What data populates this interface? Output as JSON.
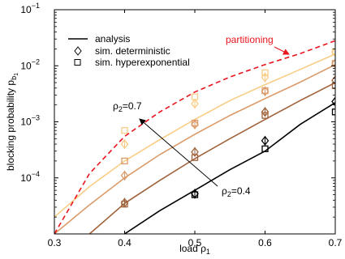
{
  "chart_data": {
    "type": "line",
    "xlabel": "load ρ",
    "xlabel_sub": "1",
    "ylabel": "blocking probability p",
    "ylabel_sub": "b",
    "ylabel_sub2": "1",
    "yscale": "log",
    "xlim": [
      0.3,
      0.7
    ],
    "ylim": [
      1e-05,
      0.1
    ],
    "xticks": [
      0.3,
      0.4,
      0.5,
      0.6,
      0.7
    ],
    "xtick_labels": [
      "0.3",
      "0.4",
      "0.5",
      "0.6",
      "0.7"
    ],
    "yticks": [
      0.0001,
      0.001,
      0.01,
      0.1
    ],
    "ytick_labels": [
      {
        "base": "10",
        "exp": "−4"
      },
      {
        "base": "10",
        "exp": "−3"
      },
      {
        "base": "10",
        "exp": "−2"
      },
      {
        "base": "10",
        "exp": "−1"
      }
    ],
    "legend": {
      "position": "top-left",
      "entries": [
        {
          "label": "analysis",
          "marker": "line"
        },
        {
          "label": "sim. deterministic",
          "marker": "diamond"
        },
        {
          "label": "sim. hyperexponential",
          "marker": "square"
        }
      ]
    },
    "annotations": {
      "partitioning": "partitioning",
      "rho_high": {
        "base": "ρ",
        "sub": "2",
        "value": "=0.7"
      },
      "rho_low": {
        "base": "ρ",
        "sub": "2",
        "value": "=0.4"
      }
    },
    "partitioning_curve": {
      "color": "#e8141e",
      "x": [
        0.3,
        0.35,
        0.4,
        0.45,
        0.5,
        0.55,
        0.6,
        0.65,
        0.7
      ],
      "y": [
        1e-05,
        0.00012,
        0.00055,
        0.0015,
        0.0034,
        0.0063,
        0.0105,
        0.0165,
        0.028
      ]
    },
    "series": [
      {
        "color": "#f9cd85",
        "analysis": {
          "x": [
            0.3,
            0.35,
            0.4,
            0.45,
            0.5,
            0.55,
            0.6,
            0.65,
            0.7
          ],
          "y": [
            2e-05,
            7e-05,
            0.0002,
            0.00048,
            0.0011,
            0.0024,
            0.0046,
            0.0086,
            0.0162
          ]
        },
        "deterministic": {
          "x": [
            0.4,
            0.5,
            0.6,
            0.7
          ],
          "y": [
            0.0004,
            0.0021,
            0.0062,
            0.0175
          ]
        },
        "hyperexponential": {
          "x": [
            0.4,
            0.5,
            0.6,
            0.7
          ],
          "y": [
            0.0007,
            0.0028,
            0.0075,
            0.0178
          ]
        }
      },
      {
        "color": "#db9a68",
        "analysis": {
          "x": [
            0.3,
            0.35,
            0.4,
            0.45,
            0.5,
            0.55,
            0.6,
            0.65,
            0.7
          ],
          "y": [
            1e-05,
            3.3e-05,
            0.0001,
            0.00026,
            0.0006,
            0.0013,
            0.0026,
            0.0051,
            0.0105
          ]
        },
        "deterministic": {
          "x": [
            0.4,
            0.5,
            0.6,
            0.7
          ],
          "y": [
            0.00011,
            0.0009,
            0.0035,
            0.011
          ]
        },
        "hyperexponential": {
          "x": [
            0.4,
            0.5,
            0.6,
            0.7
          ],
          "y": [
            0.0002,
            0.00095,
            0.0036,
            0.011
          ]
        }
      },
      {
        "color": "#a0623a",
        "analysis": {
          "x": [
            0.35,
            0.4,
            0.45,
            0.5,
            0.55,
            0.6,
            0.65,
            0.7
          ],
          "y": [
            1e-05,
            3.5e-05,
            9e-05,
            0.00022,
            0.0005,
            0.0011,
            0.0024,
            0.005
          ]
        },
        "deterministic": {
          "x": [
            0.4,
            0.5,
            0.6,
            0.7
          ],
          "y": [
            3.6e-05,
            0.00029,
            0.0015,
            0.0055
          ]
        },
        "hyperexponential": {
          "x": [
            0.4,
            0.5,
            0.6,
            0.7
          ],
          "y": [
            3.4e-05,
            0.00023,
            0.0013,
            0.0044
          ]
        }
      },
      {
        "color": "#000000",
        "analysis": {
          "x": [
            0.4,
            0.45,
            0.5,
            0.55,
            0.6,
            0.65,
            0.7
          ],
          "y": [
            1e-05,
            2.6e-05,
            6e-05,
            0.00014,
            0.0003,
            0.0009,
            0.0022
          ]
        },
        "deterministic": {
          "x": [
            0.5,
            0.6,
            0.7
          ],
          "y": [
            5.2e-05,
            0.00046,
            0.0023
          ]
        },
        "hyperexponential": {
          "x": [
            0.5,
            0.6,
            0.7
          ],
          "y": [
            5e-05,
            0.00033,
            0.0015
          ]
        }
      }
    ]
  }
}
